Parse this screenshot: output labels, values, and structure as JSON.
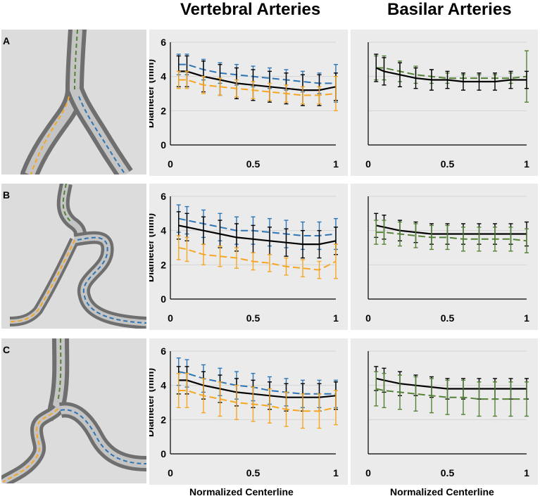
{
  "columns": {
    "left_title": "Vertebral Arteries",
    "right_title": "Basilar Arteries"
  },
  "x_axis_label": "Normalized Centerline",
  "rows": [
    {
      "label": "A"
    },
    {
      "label": "B"
    },
    {
      "label": "C"
    }
  ],
  "colors": {
    "left_vertebral": "#2e75b6",
    "right_vertebral": "#f5a623",
    "basilar": "#548235",
    "mean": "#000000"
  },
  "chart_data": [
    {
      "id": "A-vertebral",
      "type": "line",
      "ylabel": "Diameter (mm)",
      "xlabel": "Normalized Centerline",
      "xlim": [
        0,
        1
      ],
      "ylim": [
        0,
        6
      ],
      "xticks": [
        "0",
        "0.5",
        "1"
      ],
      "yticks": [
        "0",
        "2",
        "4",
        "6"
      ],
      "x": [
        0.05,
        0.1,
        0.2,
        0.3,
        0.4,
        0.5,
        0.6,
        0.7,
        0.8,
        0.9,
        1.0
      ],
      "series": [
        {
          "name": "blue",
          "dashed": true,
          "values": [
            4.7,
            4.7,
            4.4,
            4.2,
            4.1,
            4.0,
            3.9,
            3.8,
            3.7,
            3.6,
            3.6
          ],
          "err": [
            0.6,
            0.6,
            0.6,
            0.6,
            0.6,
            0.6,
            0.6,
            0.6,
            0.6,
            0.6,
            1.1
          ]
        },
        {
          "name": "black",
          "dashed": false,
          "values": [
            4.3,
            4.3,
            4.0,
            3.8,
            3.6,
            3.5,
            3.4,
            3.3,
            3.2,
            3.2,
            3.4
          ],
          "err": [
            0.9,
            0.9,
            0.9,
            0.9,
            0.9,
            0.9,
            0.9,
            0.9,
            0.9,
            0.9,
            0.8
          ]
        },
        {
          "name": "orange",
          "dashed": true,
          "values": [
            3.8,
            3.8,
            3.5,
            3.4,
            3.3,
            3.2,
            3.1,
            3.0,
            2.9,
            2.9,
            3.0
          ],
          "err": [
            0.5,
            0.5,
            0.5,
            0.5,
            0.5,
            0.5,
            0.5,
            0.5,
            0.5,
            0.5,
            1.0
          ]
        }
      ]
    },
    {
      "id": "A-basilar",
      "type": "line",
      "ylabel": "",
      "xlabel": "Normalized Centerline",
      "xlim": [
        0,
        1
      ],
      "ylim": [
        0,
        6
      ],
      "xticks": [
        "0",
        "0.5",
        "1"
      ],
      "yticks": [
        "",
        "",
        "",
        ""
      ],
      "x": [
        0.05,
        0.1,
        0.2,
        0.3,
        0.4,
        0.5,
        0.6,
        0.7,
        0.8,
        0.9,
        1.0
      ],
      "series": [
        {
          "name": "green",
          "dashed": true,
          "values": [
            4.5,
            4.5,
            4.3,
            4.1,
            4.0,
            3.9,
            3.9,
            3.9,
            3.9,
            3.9,
            4.0
          ],
          "err": [
            0.7,
            0.7,
            0.6,
            0.5,
            0.4,
            0.3,
            0.2,
            0.2,
            0.2,
            0.3,
            1.5
          ]
        },
        {
          "name": "black",
          "dashed": false,
          "values": [
            4.5,
            4.3,
            4.1,
            3.9,
            3.8,
            3.8,
            3.7,
            3.7,
            3.7,
            3.8,
            3.8
          ],
          "err": [
            0.8,
            0.8,
            0.7,
            0.6,
            0.6,
            0.5,
            0.5,
            0.5,
            0.5,
            0.5,
            0.5
          ]
        }
      ]
    },
    {
      "id": "B-vertebral",
      "type": "line",
      "ylabel": "Diameter (mm)",
      "xlabel": "Normalized Centerline",
      "xlim": [
        0,
        1
      ],
      "ylim": [
        0,
        6
      ],
      "xticks": [
        "0",
        "0.5",
        "1"
      ],
      "yticks": [
        "0",
        "2",
        "4",
        "6"
      ],
      "x": [
        0.05,
        0.1,
        0.2,
        0.3,
        0.4,
        0.5,
        0.6,
        0.7,
        0.8,
        0.9,
        1.0
      ],
      "series": [
        {
          "name": "blue",
          "dashed": true,
          "values": [
            4.7,
            4.6,
            4.4,
            4.2,
            4.0,
            4.0,
            3.9,
            3.8,
            3.7,
            3.7,
            3.8
          ],
          "err": [
            0.8,
            0.8,
            0.8,
            0.8,
            0.8,
            0.8,
            0.8,
            0.8,
            0.8,
            0.8,
            0.9
          ]
        },
        {
          "name": "black",
          "dashed": false,
          "values": [
            4.3,
            4.2,
            4.0,
            3.8,
            3.6,
            3.5,
            3.4,
            3.3,
            3.2,
            3.2,
            3.4
          ],
          "err": [
            0.8,
            0.8,
            0.8,
            0.8,
            0.8,
            0.8,
            0.8,
            0.8,
            0.8,
            0.8,
            0.8
          ]
        },
        {
          "name": "orange",
          "dashed": true,
          "values": [
            3.0,
            2.9,
            2.6,
            2.5,
            2.4,
            2.2,
            2.1,
            1.9,
            1.8,
            1.7,
            2.2
          ],
          "err": [
            0.7,
            0.7,
            0.6,
            0.6,
            0.6,
            0.5,
            0.5,
            0.5,
            0.5,
            0.5,
            1.0
          ]
        }
      ]
    },
    {
      "id": "B-basilar",
      "type": "line",
      "ylabel": "",
      "xlabel": "Normalized Centerline",
      "xlim": [
        0,
        1
      ],
      "ylim": [
        0,
        6
      ],
      "xticks": [
        "0",
        "0.5",
        "1"
      ],
      "yticks": [
        "",
        "",
        "",
        ""
      ],
      "x": [
        0.05,
        0.1,
        0.2,
        0.3,
        0.4,
        0.5,
        0.6,
        0.7,
        0.8,
        0.9,
        1.0
      ],
      "series": [
        {
          "name": "black",
          "dashed": false,
          "values": [
            4.3,
            4.2,
            4.0,
            3.9,
            3.8,
            3.8,
            3.8,
            3.8,
            3.8,
            3.8,
            3.8
          ],
          "err": [
            0.7,
            0.7,
            0.6,
            0.6,
            0.6,
            0.6,
            0.6,
            0.6,
            0.6,
            0.6,
            0.7
          ]
        },
        {
          "name": "green",
          "dashed": true,
          "values": [
            3.9,
            3.9,
            3.8,
            3.7,
            3.6,
            3.6,
            3.5,
            3.5,
            3.5,
            3.5,
            3.4
          ],
          "err": [
            0.7,
            0.7,
            0.7,
            0.7,
            0.7,
            0.7,
            0.7,
            0.7,
            0.7,
            0.7,
            0.7
          ]
        }
      ]
    },
    {
      "id": "C-vertebral",
      "type": "line",
      "ylabel": "Diameter (mm)",
      "xlabel": "Normalized Centerline",
      "xlim": [
        0,
        1
      ],
      "ylim": [
        0,
        6
      ],
      "xticks": [
        "0",
        "0.5",
        "1"
      ],
      "yticks": [
        "0",
        "2",
        "4",
        "6"
      ],
      "x": [
        0.05,
        0.1,
        0.2,
        0.3,
        0.4,
        0.5,
        0.6,
        0.7,
        0.8,
        0.9,
        1.0
      ],
      "series": [
        {
          "name": "blue",
          "dashed": true,
          "values": [
            4.8,
            4.7,
            4.4,
            4.2,
            4.0,
            3.9,
            3.7,
            3.6,
            3.5,
            3.5,
            3.5
          ],
          "err": [
            0.8,
            0.8,
            0.8,
            0.8,
            0.8,
            0.8,
            0.8,
            0.8,
            0.8,
            0.8,
            0.8
          ]
        },
        {
          "name": "black",
          "dashed": false,
          "values": [
            4.3,
            4.3,
            4.0,
            3.8,
            3.6,
            3.5,
            3.4,
            3.3,
            3.3,
            3.3,
            3.4
          ],
          "err": [
            0.8,
            0.8,
            0.8,
            0.8,
            0.8,
            0.8,
            0.8,
            0.8,
            0.8,
            0.8,
            0.8
          ]
        },
        {
          "name": "orange",
          "dashed": true,
          "values": [
            3.7,
            3.7,
            3.4,
            3.2,
            3.0,
            2.9,
            2.8,
            2.6,
            2.5,
            2.5,
            2.7
          ],
          "err": [
            1.0,
            1.0,
            1.0,
            1.0,
            1.0,
            1.0,
            1.0,
            1.0,
            1.0,
            1.0,
            1.0
          ]
        }
      ]
    },
    {
      "id": "C-basilar",
      "type": "line",
      "ylabel": "",
      "xlabel": "Normalized Centerline",
      "xlim": [
        0,
        1
      ],
      "ylim": [
        0,
        6
      ],
      "xticks": [
        "0",
        "0.5",
        "1"
      ],
      "yticks": [
        "",
        "",
        "",
        ""
      ],
      "x": [
        0.05,
        0.1,
        0.2,
        0.3,
        0.4,
        0.5,
        0.6,
        0.7,
        0.8,
        0.9,
        1.0
      ],
      "series": [
        {
          "name": "black",
          "dashed": false,
          "values": [
            4.4,
            4.3,
            4.1,
            4.0,
            3.9,
            3.8,
            3.8,
            3.8,
            3.8,
            3.8,
            3.8
          ],
          "err": [
            0.7,
            0.7,
            0.7,
            0.6,
            0.6,
            0.6,
            0.6,
            0.6,
            0.6,
            0.6,
            0.6
          ]
        },
        {
          "name": "green",
          "dashed": true,
          "values": [
            3.8,
            3.7,
            3.6,
            3.5,
            3.4,
            3.3,
            3.3,
            3.2,
            3.2,
            3.2,
            3.2
          ],
          "err": [
            1.0,
            1.0,
            1.0,
            1.0,
            1.0,
            1.0,
            1.0,
            1.0,
            1.0,
            1.0,
            1.0
          ]
        }
      ]
    }
  ]
}
